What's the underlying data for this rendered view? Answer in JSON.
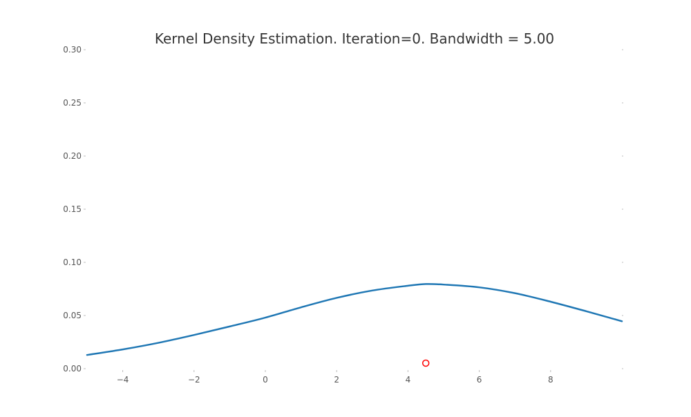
{
  "chart_data": {
    "type": "line",
    "title": "Kernel Density Estimation. Iteration=0. Bandwidth = 5.00",
    "xlabel": "",
    "ylabel": "",
    "xlim": [
      -5,
      10
    ],
    "ylim": [
      0,
      0.3
    ],
    "x_ticks": [
      -4,
      -2,
      0,
      2,
      4,
      6,
      8
    ],
    "x_tick_labels": [
      "−4",
      "−2",
      "0",
      "2",
      "4",
      "6",
      "8"
    ],
    "y_ticks": [
      0,
      0.05,
      0.1,
      0.15,
      0.2,
      0.25,
      0.3
    ],
    "y_tick_labels": [
      "0.00",
      "0.05",
      "0.10",
      "0.15",
      "0.20",
      "0.25",
      "0.30"
    ],
    "grid": false,
    "legend": "none",
    "series": [
      {
        "color": "#1f77b4",
        "x": [
          -5,
          -4,
          -3,
          -2,
          -1,
          0,
          1,
          2,
          3,
          4,
          4.5,
          5,
          6,
          7,
          8,
          9,
          10
        ],
        "y": [
          0.0129,
          0.0181,
          0.0243,
          0.0317,
          0.0397,
          0.048,
          0.0577,
          0.0666,
          0.0735,
          0.078,
          0.0796,
          0.0791,
          0.0765,
          0.071,
          0.063,
          0.054,
          0.0446
        ]
      }
    ],
    "markers": [
      {
        "color": "#ff0000",
        "x": 4.5,
        "y": 0
      }
    ]
  }
}
